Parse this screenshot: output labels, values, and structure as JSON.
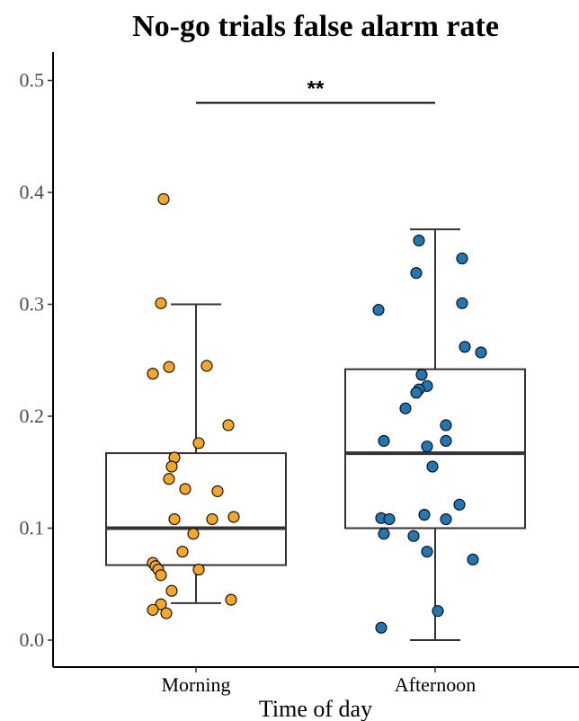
{
  "chart_data": {
    "type": "box-scatter",
    "title": "No-go trials false alarm rate",
    "xlabel": "Time of day",
    "ylabel": "",
    "ylim": [
      -0.02,
      0.525
    ],
    "yticks": [
      "0.0",
      "0.1",
      "0.2",
      "0.3",
      "0.4",
      "0.5"
    ],
    "ytick_values": [
      0.0,
      0.1,
      0.2,
      0.3,
      0.4,
      0.5
    ],
    "categories": [
      "Morning",
      "Afternoon"
    ],
    "significance": {
      "label": "**",
      "y": 0.48
    },
    "grid": false,
    "series": [
      {
        "category": "Morning",
        "color": "#F5A623",
        "box": {
          "whisker_low": 0.033,
          "q1": 0.067,
          "median": 0.1,
          "q3": 0.167,
          "whisker_high": 0.3
        },
        "points": [
          {
            "x": -0.12,
            "y": 0.394
          },
          {
            "x": -0.13,
            "y": 0.301
          },
          {
            "x": -0.16,
            "y": 0.238
          },
          {
            "x": -0.1,
            "y": 0.244
          },
          {
            "x": 0.04,
            "y": 0.245
          },
          {
            "x": 0.12,
            "y": 0.192
          },
          {
            "x": 0.01,
            "y": 0.176
          },
          {
            "x": -0.08,
            "y": 0.163
          },
          {
            "x": -0.09,
            "y": 0.155
          },
          {
            "x": -0.1,
            "y": 0.144
          },
          {
            "x": -0.04,
            "y": 0.135
          },
          {
            "x": 0.08,
            "y": 0.133
          },
          {
            "x": 0.14,
            "y": 0.11
          },
          {
            "x": -0.08,
            "y": 0.108
          },
          {
            "x": 0.06,
            "y": 0.108
          },
          {
            "x": -0.01,
            "y": 0.095
          },
          {
            "x": -0.05,
            "y": 0.079
          },
          {
            "x": -0.16,
            "y": 0.069
          },
          {
            "x": -0.15,
            "y": 0.066
          },
          {
            "x": -0.14,
            "y": 0.063
          },
          {
            "x": 0.01,
            "y": 0.063
          },
          {
            "x": -0.13,
            "y": 0.058
          },
          {
            "x": -0.09,
            "y": 0.044
          },
          {
            "x": 0.13,
            "y": 0.036
          },
          {
            "x": -0.13,
            "y": 0.032
          },
          {
            "x": -0.16,
            "y": 0.027
          },
          {
            "x": -0.11,
            "y": 0.024
          }
        ]
      },
      {
        "category": "Afternoon",
        "color": "#1F78B4",
        "box": {
          "whisker_low": 0.0,
          "q1": 0.1,
          "median": 0.167,
          "q3": 0.242,
          "whisker_high": 0.367
        },
        "points": [
          {
            "x": -0.06,
            "y": 0.357
          },
          {
            "x": 0.1,
            "y": 0.341
          },
          {
            "x": -0.07,
            "y": 0.328
          },
          {
            "x": 0.1,
            "y": 0.301
          },
          {
            "x": -0.21,
            "y": 0.295
          },
          {
            "x": 0.11,
            "y": 0.262
          },
          {
            "x": 0.17,
            "y": 0.257
          },
          {
            "x": -0.05,
            "y": 0.237
          },
          {
            "x": -0.03,
            "y": 0.227
          },
          {
            "x": -0.06,
            "y": 0.224
          },
          {
            "x": -0.07,
            "y": 0.221
          },
          {
            "x": -0.11,
            "y": 0.207
          },
          {
            "x": 0.04,
            "y": 0.192
          },
          {
            "x": -0.19,
            "y": 0.178
          },
          {
            "x": 0.04,
            "y": 0.178
          },
          {
            "x": -0.03,
            "y": 0.173
          },
          {
            "x": -0.01,
            "y": 0.155
          },
          {
            "x": 0.09,
            "y": 0.121
          },
          {
            "x": -0.04,
            "y": 0.112
          },
          {
            "x": -0.2,
            "y": 0.109
          },
          {
            "x": -0.17,
            "y": 0.108
          },
          {
            "x": 0.04,
            "y": 0.108
          },
          {
            "x": -0.19,
            "y": 0.095
          },
          {
            "x": -0.08,
            "y": 0.093
          },
          {
            "x": -0.03,
            "y": 0.079
          },
          {
            "x": 0.14,
            "y": 0.072
          },
          {
            "x": 0.01,
            "y": 0.026
          },
          {
            "x": -0.2,
            "y": 0.011
          }
        ]
      }
    ]
  }
}
